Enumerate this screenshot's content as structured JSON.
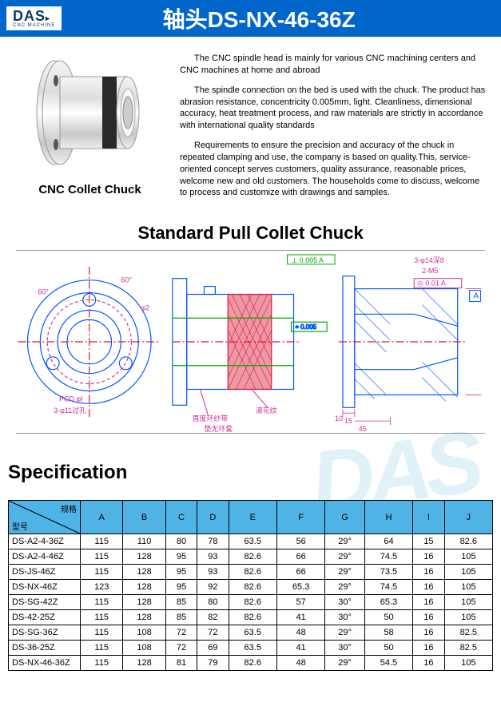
{
  "header": {
    "logo_top": "DAS",
    "logo_sub": "CNC MACHINE",
    "title": "轴头DS-NX-46-36Z"
  },
  "product": {
    "caption": "CNC Collet Chuck",
    "para1": "The CNC spindle head is mainly for various CNC machining centers and CNC machines at home and abroad",
    "para2": "The spindle connection on the bed is used with the chuck. The product has abrasion resistance, concentricity 0.005mm, light. Cleanliness, dimensional accuracy, heat treatment process, and raw materials are strictly in accordance with international quality standards",
    "para3": "Requirements to ensure the precision and accuracy of the chuck in repeated clamping and use, the company is based on quality.This, service-oriented concept serves customers, quality assurance, reasonable prices, welcome new and old customers. The households come to discuss, welcome to process and customize with drawings and samples."
  },
  "drawing": {
    "title": "Standard Pull Collet Chuck",
    "callout1": "直度环纱带",
    "callout2": "滚花纹",
    "callout3": "垫无环套",
    "tol1": "0.005 A",
    "tol2": "0.01 A",
    "tol3": "0.005",
    "note1": "2-M5",
    "note2": "3-φ14深8",
    "dim1": "60°",
    "dim2": "45°",
    "dim3": "15",
    "dim4": "10",
    "dim5": "45",
    "dim6": "φ2",
    "pcd": "PCD φI",
    "holes": "3-φ11过孔"
  },
  "spec": {
    "title": "Specification",
    "watermark": "DAS",
    "corner_top": "规格",
    "corner_bottom": "型号",
    "columns": [
      "A",
      "B",
      "C",
      "D",
      "E",
      "F",
      "G",
      "H",
      "I",
      "J"
    ],
    "rows": [
      {
        "model": "DS-A2-4-36Z",
        "A": "115",
        "B": "110",
        "C": "80",
        "D": "78",
        "E": "63.5",
        "F": "56",
        "G": "29°",
        "H": "64",
        "I": "15",
        "J": "82.6"
      },
      {
        "model": "DS-A2-4-46Z",
        "A": "115",
        "B": "128",
        "C": "95",
        "D": "93",
        "E": "82.6",
        "F": "66",
        "G": "29°",
        "H": "74.5",
        "I": "16",
        "J": "105"
      },
      {
        "model": "DS-JS-46Z",
        "A": "115",
        "B": "128",
        "C": "95",
        "D": "93",
        "E": "82.6",
        "F": "66",
        "G": "29°",
        "H": "73.5",
        "I": "16",
        "J": "105"
      },
      {
        "model": "DS-NX-46Z",
        "A": "123",
        "B": "128",
        "C": "95",
        "D": "92",
        "E": "82.6",
        "F": "65.3",
        "G": "29°",
        "H": "74.5",
        "I": "16",
        "J": "105"
      },
      {
        "model": "DS-SG-42Z",
        "A": "115",
        "B": "128",
        "C": "85",
        "D": "80",
        "E": "82.6",
        "F": "57",
        "G": "30°",
        "H": "65.3",
        "I": "16",
        "J": "105"
      },
      {
        "model": "DS-42-25Z",
        "A": "115",
        "B": "128",
        "C": "85",
        "D": "82",
        "E": "82.6",
        "F": "41",
        "G": "30°",
        "H": "50",
        "I": "16",
        "J": "105"
      },
      {
        "model": "DS-SG-36Z",
        "A": "115",
        "B": "108",
        "C": "72",
        "D": "72",
        "E": "63.5",
        "F": "48",
        "G": "29°",
        "H": "58",
        "I": "16",
        "J": "82.5"
      },
      {
        "model": "DS-36-25Z",
        "A": "115",
        "B": "108",
        "C": "72",
        "D": "69",
        "E": "63.5",
        "F": "41",
        "G": "30°",
        "H": "50",
        "I": "16",
        "J": "82.5"
      },
      {
        "model": "DS-NX-46-36Z",
        "A": "115",
        "B": "128",
        "C": "81",
        "D": "79",
        "E": "82.6",
        "F": "48",
        "G": "29°",
        "H": "54.5",
        "I": "16",
        "J": "105"
      }
    ]
  },
  "colors": {
    "header_bg": "#0066cc",
    "table_header_bg": "#4fb3e6",
    "drawing_blue": "#0055ff",
    "drawing_red": "#d91a3a",
    "drawing_magenta": "#cc3399",
    "drawing_green": "#00aa00"
  }
}
